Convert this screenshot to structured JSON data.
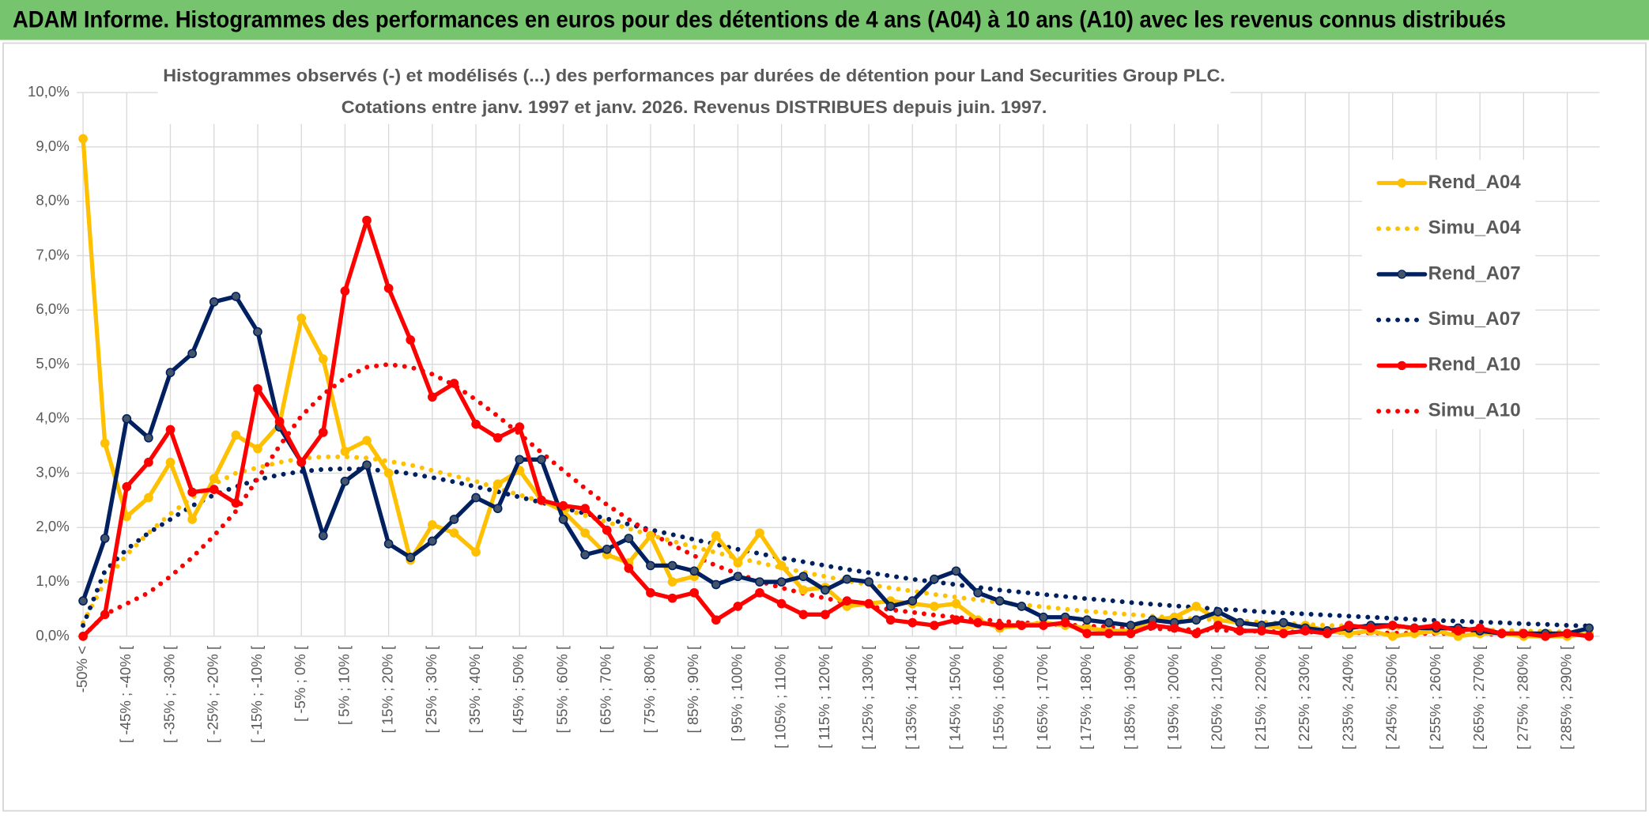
{
  "chart_data": {
    "type": "line",
    "header": "ADAM Informe. Histogrammes des performances en euros pour des détentions de 4 ans (A04) à 10 ans (A10) avec les revenus connus distribués",
    "title": "Histogrammes observés (-) et modélisés (...) des performances par durées de détention pour Land Securities Group PLC.",
    "subtitle": "Cotations entre janv. 1997 et janv. 2026. Revenus DISTRIBUES depuis juin. 1997.",
    "categories": [
      "-50% <",
      null,
      "[ -45% ; -40% [",
      null,
      "[ -35% ; -30% [",
      null,
      "[ -25% ; -20% [",
      null,
      "[ -15% ; -10% [",
      null,
      "[ -5% ; 0% [",
      null,
      "[ 5% ; 10% [",
      null,
      "[ 15% ; 20% [",
      null,
      "[ 25% ; 30% [",
      null,
      "[ 35% ; 40% [",
      null,
      "[ 45% ; 50% [",
      null,
      "[ 55% ; 60% [",
      null,
      "[ 65% ; 70% [",
      null,
      "[ 75% ; 80% [",
      null,
      "[ 85% ; 90% [",
      null,
      "[ 95% ; 100% [",
      null,
      "[ 105% ; 110% [",
      null,
      "[ 115% ; 120% [",
      null,
      "[ 125% ; 130% [",
      null,
      "[ 135% ; 140% [",
      null,
      "[ 145% ; 150% [",
      null,
      "[ 155% ; 160% [",
      null,
      "[ 165% ; 170% [",
      null,
      "[ 175% ; 180% [",
      null,
      "[ 185% ; 190% [",
      null,
      "[ 195% ; 200% [",
      null,
      "[ 205% ; 210% [",
      null,
      "[ 215% ; 220% [",
      null,
      "[ 225% ; 230% [",
      null,
      "[ 235% ; 240% [",
      null,
      "[ 245% ; 250% [",
      null,
      "[ 255% ; 260% [",
      null,
      "[ 265% ; 270% [",
      null,
      "[ 275% ; 280% [",
      null,
      "[ 285% ; 290% [",
      null
    ],
    "series": [
      {
        "name": "Rend_A04",
        "color": "#ffc000",
        "line_style": "solid",
        "markers": true,
        "values": [
          9.15,
          3.55,
          2.2,
          2.55,
          3.2,
          2.15,
          2.9,
          3.7,
          3.45,
          3.9,
          5.85,
          5.1,
          3.4,
          3.6,
          3.0,
          1.4,
          2.05,
          1.9,
          1.55,
          2.8,
          3.05,
          2.5,
          2.3,
          1.9,
          1.5,
          1.35,
          1.85,
          1.0,
          1.1,
          1.85,
          1.35,
          1.9,
          1.3,
          0.85,
          0.9,
          0.55,
          0.6,
          0.65,
          0.6,
          0.55,
          0.6,
          0.3,
          0.15,
          0.2,
          0.25,
          0.2,
          0.15,
          0.1,
          0.1,
          0.3,
          0.35,
          0.55,
          0.3,
          0.25,
          0.2,
          0.15,
          0.2,
          0.1,
          0.05,
          0.1,
          0.0,
          0.05,
          0.1,
          0.0,
          0.05,
          0.05,
          0.0,
          0.0,
          0.0,
          0.05
        ]
      },
      {
        "name": "Simu_A04",
        "color": "#ffc000",
        "line_style": "dotted",
        "markers": false,
        "values": [
          0.25,
          1.0,
          1.5,
          1.9,
          2.25,
          2.55,
          2.8,
          3.0,
          3.1,
          3.2,
          3.27,
          3.3,
          3.3,
          3.28,
          3.22,
          3.15,
          3.05,
          2.95,
          2.85,
          2.72,
          2.6,
          2.48,
          2.35,
          2.22,
          2.1,
          1.98,
          1.86,
          1.75,
          1.64,
          1.54,
          1.44,
          1.35,
          1.26,
          1.18,
          1.1,
          1.02,
          0.95,
          0.89,
          0.83,
          0.77,
          0.72,
          0.67,
          0.62,
          0.58,
          0.54,
          0.5,
          0.46,
          0.43,
          0.4,
          0.37,
          0.34,
          0.32,
          0.3,
          0.28,
          0.26,
          0.24,
          0.22,
          0.2,
          0.19,
          0.17,
          0.16,
          0.15,
          0.14,
          0.13,
          0.12,
          0.11,
          0.1,
          0.09,
          0.08,
          0.08
        ]
      },
      {
        "name": "Rend_A07",
        "color": "#002060",
        "line_style": "solid",
        "markers": true,
        "values": [
          0.65,
          1.8,
          4.0,
          3.65,
          4.85,
          5.2,
          6.15,
          6.25,
          5.6,
          3.85,
          3.2,
          1.85,
          2.85,
          3.15,
          1.7,
          1.45,
          1.75,
          2.15,
          2.55,
          2.35,
          3.25,
          3.25,
          2.15,
          1.5,
          1.6,
          1.8,
          1.3,
          1.3,
          1.2,
          0.95,
          1.1,
          1.0,
          1.0,
          1.1,
          0.85,
          1.05,
          1.0,
          0.55,
          0.65,
          1.05,
          1.2,
          0.8,
          0.65,
          0.55,
          0.35,
          0.35,
          0.3,
          0.25,
          0.2,
          0.3,
          0.25,
          0.3,
          0.45,
          0.25,
          0.2,
          0.25,
          0.15,
          0.1,
          0.15,
          0.2,
          0.2,
          0.15,
          0.15,
          0.15,
          0.1,
          0.05,
          0.05,
          0.05,
          0.05,
          0.15
        ]
      },
      {
        "name": "Simu_A07",
        "color": "#002060",
        "line_style": "dotted",
        "markers": false,
        "values": [
          0.2,
          1.2,
          1.6,
          1.9,
          2.15,
          2.4,
          2.6,
          2.75,
          2.88,
          2.97,
          3.03,
          3.07,
          3.08,
          3.07,
          3.04,
          2.99,
          2.92,
          2.84,
          2.75,
          2.66,
          2.56,
          2.46,
          2.36,
          2.26,
          2.16,
          2.06,
          1.96,
          1.87,
          1.78,
          1.69,
          1.6,
          1.52,
          1.44,
          1.37,
          1.3,
          1.23,
          1.17,
          1.11,
          1.05,
          1.0,
          0.95,
          0.9,
          0.85,
          0.81,
          0.77,
          0.73,
          0.69,
          0.66,
          0.62,
          0.59,
          0.56,
          0.53,
          0.5,
          0.48,
          0.45,
          0.43,
          0.41,
          0.39,
          0.37,
          0.35,
          0.33,
          0.31,
          0.29,
          0.28,
          0.26,
          0.25,
          0.23,
          0.22,
          0.2,
          0.19
        ]
      },
      {
        "name": "Rend_A10",
        "color": "#ff0000",
        "line_style": "solid",
        "markers": true,
        "values": [
          0.0,
          0.4,
          2.75,
          3.2,
          3.8,
          2.65,
          2.7,
          2.45,
          4.55,
          3.95,
          3.2,
          3.75,
          6.35,
          7.65,
          6.4,
          5.45,
          4.4,
          4.65,
          3.9,
          3.65,
          3.85,
          2.5,
          2.4,
          2.35,
          1.95,
          1.25,
          0.8,
          0.7,
          0.8,
          0.3,
          0.55,
          0.8,
          0.6,
          0.4,
          0.4,
          0.65,
          0.6,
          0.3,
          0.25,
          0.2,
          0.3,
          0.25,
          0.2,
          0.2,
          0.2,
          0.25,
          0.05,
          0.05,
          0.05,
          0.2,
          0.15,
          0.05,
          0.2,
          0.1,
          0.1,
          0.05,
          0.1,
          0.05,
          0.2,
          0.15,
          0.2,
          0.15,
          0.2,
          0.1,
          0.15,
          0.05,
          0.05,
          0.0,
          0.05,
          0.0
        ]
      },
      {
        "name": "Simu_A10",
        "color": "#ff0000",
        "line_style": "dotted",
        "markers": false,
        "values": [
          0.0,
          0.4,
          0.6,
          0.8,
          1.1,
          1.45,
          1.85,
          2.3,
          2.9,
          3.5,
          4.05,
          4.45,
          4.75,
          4.95,
          5.0,
          4.95,
          4.82,
          4.62,
          4.35,
          4.05,
          3.72,
          3.38,
          3.05,
          2.72,
          2.42,
          2.15,
          1.9,
          1.68,
          1.48,
          1.3,
          1.15,
          1.01,
          0.89,
          0.79,
          0.7,
          0.62,
          0.55,
          0.49,
          0.44,
          0.39,
          0.35,
          0.31,
          0.28,
          0.25,
          0.23,
          0.21,
          0.19,
          0.17,
          0.15,
          0.14,
          0.13,
          0.12,
          0.11,
          0.1,
          0.09,
          0.08,
          0.08,
          0.07,
          0.07,
          0.06,
          0.06,
          0.05,
          0.05,
          0.05,
          0.04,
          0.04,
          0.04,
          0.04,
          0.03,
          0.03
        ]
      }
    ],
    "ylim": [
      0,
      10
    ],
    "yticks": [
      {
        "value": 0,
        "label": "0,0%"
      },
      {
        "value": 1,
        "label": "1,0%"
      },
      {
        "value": 2,
        "label": "2,0%"
      },
      {
        "value": 3,
        "label": "3,0%"
      },
      {
        "value": 4,
        "label": "4,0%"
      },
      {
        "value": 5,
        "label": "5,0%"
      },
      {
        "value": 6,
        "label": "6,0%"
      },
      {
        "value": 7,
        "label": "7,0%"
      },
      {
        "value": 8,
        "label": "8,0%"
      },
      {
        "value": 9,
        "label": "9,0%"
      },
      {
        "value": 10,
        "label": "10,0%"
      }
    ],
    "grid": true,
    "legend": "right",
    "header_color": "#77c46f"
  }
}
